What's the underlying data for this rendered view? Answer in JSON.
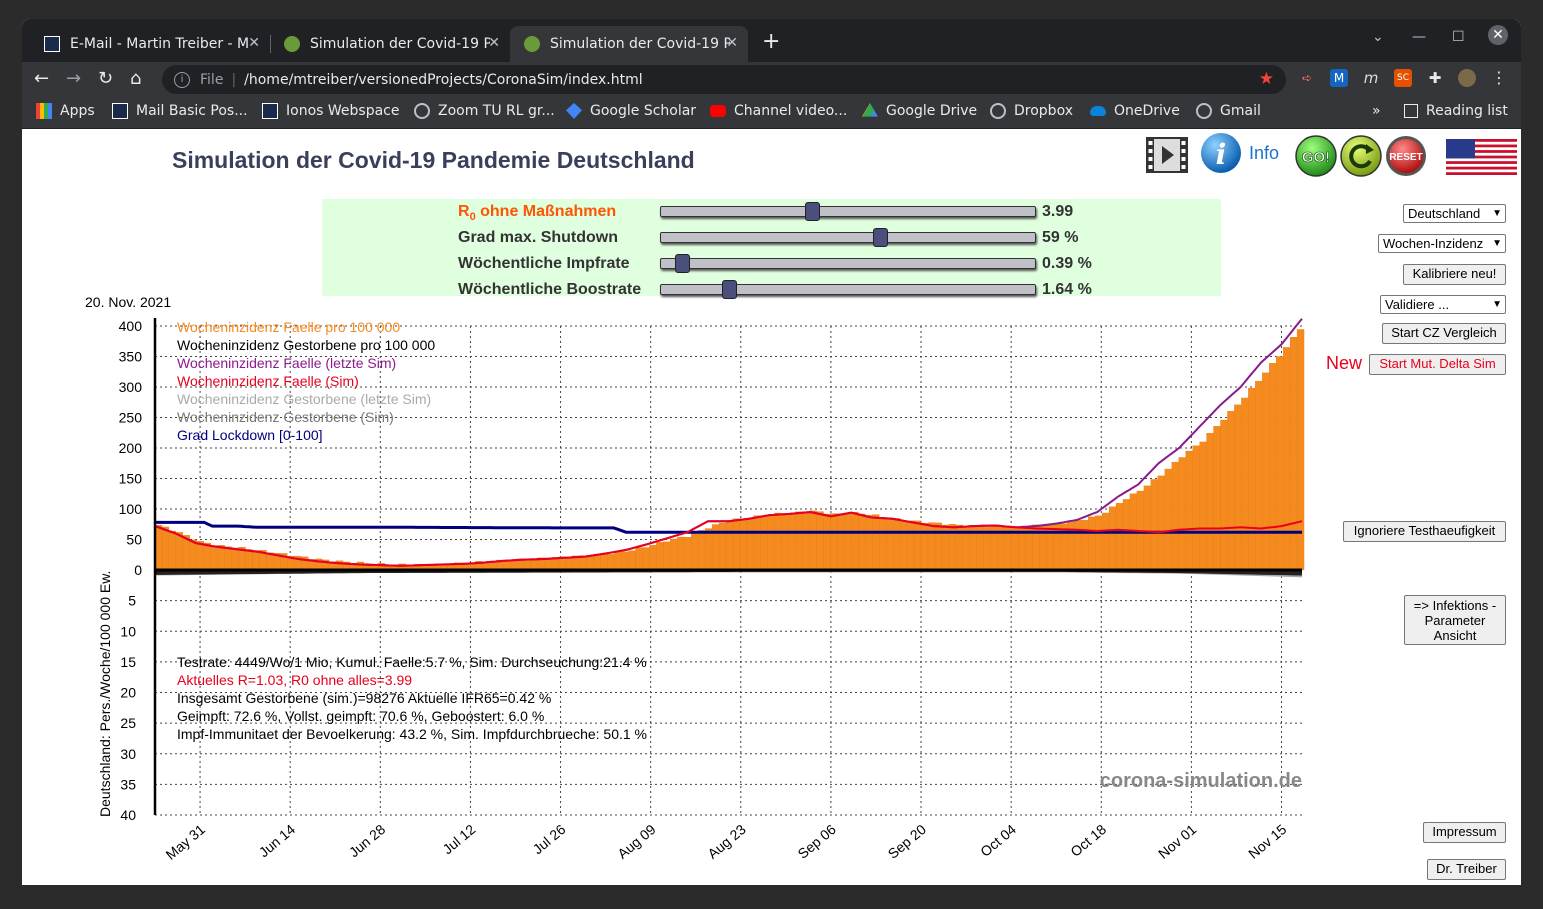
{
  "browser": {
    "tabs": [
      {
        "title": "E-Mail - Martin Treiber - M"
      },
      {
        "title": "Simulation der Covid-19 P"
      },
      {
        "title": "Simulation der Covid-19 P"
      }
    ],
    "url_scheme": "File",
    "url": "/home/mtreiber/versionedProjects/CoronaSim/index.html",
    "bookmarks": [
      "Apps",
      "Mail Basic Pos...",
      "Ionos Webspace",
      "Zoom TU RL gr...",
      "Google Scholar",
      "Channel video...",
      "Google Drive",
      "Dropbox",
      "OneDrive",
      "Gmail"
    ],
    "reading_list": "Reading list"
  },
  "page": {
    "title": "Simulation der Covid-19 Pandemie Deutschland",
    "info_label": "Info",
    "go_label": "GO!",
    "reset_label": "RESET"
  },
  "sliders": [
    {
      "label_main": "R",
      "label_sub": "0",
      "label_rest": " ohne Maßnahmen",
      "value_text": "3.99",
      "fraction": 0.4,
      "color": "#ff5500"
    },
    {
      "label": "Grad max. Shutdown",
      "value_text": "59 %",
      "fraction": 0.59,
      "color": "#333333"
    },
    {
      "label": "Wöchentliche Impfrate",
      "value_text": "0.39 %",
      "fraction": 0.04,
      "color": "#333333"
    },
    {
      "label": "Wöchentliche Boostrate",
      "value_text": "1.64 %",
      "fraction": 0.17,
      "color": "#333333"
    }
  ],
  "right_panel": {
    "country_select": "Deutschland",
    "metric_select": "Wochen-Inzidenz",
    "calibrate": "Kalibriere neu!",
    "validate_select": "Validiere ...",
    "start_cz": "Start CZ Vergleich",
    "new_label": "New",
    "start_delta": "Start Mut. Delta Sim",
    "ignore_tests": "Ignoriere Testhaeufigkeit",
    "param_view": [
      "=> Infektions -",
      "Parameter",
      "Ansicht"
    ],
    "impressum": "Impressum",
    "author": "Dr. Treiber"
  },
  "chart_data": {
    "type": "bar",
    "date_label": "20. Nov. 2021",
    "ylabel": "Deutschland: Pers./Woche/100 000 Ew.",
    "upper_ticks": [
      "400",
      "350",
      "300",
      "250",
      "200",
      "150",
      "100",
      "50",
      "0"
    ],
    "lower_ticks": [
      "5",
      "10",
      "15",
      "20",
      "25",
      "30",
      "35",
      "40"
    ],
    "x_ticks": [
      "May 31",
      "Jun 14",
      "Jun 28",
      "Jul 12",
      "Jul 26",
      "Aug 09",
      "Aug 23",
      "Sep 06",
      "Sep 20",
      "Oct 04",
      "Oct 18",
      "Nov 01",
      "Nov 15"
    ],
    "ylim_cases": [
      0,
      400
    ],
    "ylim_deaths": [
      0,
      40
    ],
    "legend": [
      {
        "text": "Wocheninzidenz Faelle pro 100 000",
        "color": "#f58a1f"
      },
      {
        "text": "Wocheninzidenz Gestorbene pro 100 000",
        "color": "#000000"
      },
      {
        "text": "Wocheninzidenz Faelle (letzte Sim)",
        "color": "#8b1a8b"
      },
      {
        "text": "Wocheninzidenz Faelle (Sim)",
        "color": "#e8001c"
      },
      {
        "text": "Wocheninzidenz Gestorbene (letzte Sim)",
        "color": "#aaaaaa"
      },
      {
        "text": "Wocheninzidenz Gestorbene (Sim)",
        "color": "#777777"
      },
      {
        "text": "Grad Lockdown [0-100]",
        "color": "#00007f"
      }
    ],
    "info_lines": [
      {
        "text": "Testrate: 4449/Wo/1 Mio, Kumul. Faelle:5.7 %, Sim. Durchseuchung:21.4 %",
        "color": "#000000"
      },
      {
        "text": "Aktuelles R=1.03,  R0 ohne alles=3.99",
        "color": "#e8001c"
      },
      {
        "text": "Insgesamt Gestorbene (sim.)=98276 Aktuelle IFR65=0.42 %",
        "color": "#000000"
      },
      {
        "text": "Geimpft: 72.6 %, Vollst. geimpft: 70.6 %, Geboostert: 6.0 %",
        "color": "#000000"
      },
      {
        "text": "Impf-Immunitaet der Bevoelkerung: 43.2 %, Sim. Impfdurchbrueche: 50.1 %",
        "color": "#000000"
      }
    ],
    "watermark": "corona-simulation.de",
    "series": [
      {
        "name": "Wocheninzidenz Faelle pro 100 000",
        "kind": "bars",
        "points": [
          [
            0,
            72
          ],
          [
            5,
            60
          ],
          [
            10,
            45
          ],
          [
            15,
            38
          ],
          [
            20,
            35
          ],
          [
            25,
            30
          ],
          [
            30,
            25
          ],
          [
            35,
            20
          ],
          [
            40,
            15
          ],
          [
            45,
            12
          ],
          [
            50,
            10
          ],
          [
            55,
            8
          ],
          [
            60,
            7
          ],
          [
            65,
            7
          ],
          [
            70,
            8
          ],
          [
            75,
            10
          ],
          [
            80,
            12
          ],
          [
            85,
            14
          ],
          [
            90,
            16
          ],
          [
            95,
            18
          ],
          [
            100,
            20
          ],
          [
            105,
            22
          ],
          [
            110,
            25
          ],
          [
            115,
            30
          ],
          [
            120,
            38
          ],
          [
            125,
            48
          ],
          [
            130,
            55
          ],
          [
            135,
            70
          ],
          [
            140,
            80
          ],
          [
            145,
            85
          ],
          [
            150,
            90
          ],
          [
            155,
            92
          ],
          [
            160,
            95
          ],
          [
            165,
            90
          ],
          [
            170,
            92
          ],
          [
            175,
            88
          ],
          [
            180,
            82
          ],
          [
            185,
            78
          ],
          [
            190,
            75
          ],
          [
            195,
            72
          ],
          [
            200,
            70
          ],
          [
            205,
            70
          ],
          [
            210,
            68
          ],
          [
            215,
            72
          ],
          [
            220,
            75
          ],
          [
            225,
            80
          ],
          [
            230,
            88
          ],
          [
            235,
            110
          ],
          [
            240,
            130
          ],
          [
            245,
            155
          ],
          [
            250,
            185
          ],
          [
            255,
            210
          ],
          [
            260,
            245
          ],
          [
            265,
            280
          ],
          [
            270,
            320
          ],
          [
            275,
            360
          ],
          [
            280,
            405
          ]
        ]
      },
      {
        "name": "Wocheninzidenz Faelle (letzte Sim)",
        "kind": "line",
        "points": [
          [
            0,
            72
          ],
          [
            5,
            60
          ],
          [
            10,
            44
          ],
          [
            15,
            38
          ],
          [
            20,
            34
          ],
          [
            25,
            30
          ],
          [
            30,
            24
          ],
          [
            35,
            18
          ],
          [
            40,
            14
          ],
          [
            45,
            11
          ],
          [
            50,
            9
          ],
          [
            55,
            8
          ],
          [
            60,
            7
          ],
          [
            65,
            8
          ],
          [
            70,
            9
          ],
          [
            75,
            10
          ],
          [
            80,
            12
          ],
          [
            85,
            15
          ],
          [
            90,
            17
          ],
          [
            95,
            18
          ],
          [
            100,
            20
          ],
          [
            105,
            22
          ],
          [
            110,
            27
          ],
          [
            115,
            33
          ],
          [
            120,
            42
          ],
          [
            125,
            52
          ],
          [
            130,
            62
          ],
          [
            135,
            80
          ],
          [
            140,
            80
          ],
          [
            145,
            84
          ],
          [
            150,
            90
          ],
          [
            155,
            92
          ],
          [
            160,
            95
          ],
          [
            165,
            88
          ],
          [
            170,
            94
          ],
          [
            175,
            86
          ],
          [
            180,
            84
          ],
          [
            185,
            78
          ],
          [
            190,
            72
          ],
          [
            195,
            70
          ],
          [
            200,
            72
          ],
          [
            205,
            73
          ],
          [
            210,
            70
          ],
          [
            215,
            72
          ],
          [
            220,
            76
          ],
          [
            225,
            82
          ],
          [
            230,
            95
          ],
          [
            235,
            120
          ],
          [
            240,
            140
          ],
          [
            245,
            175
          ],
          [
            250,
            200
          ],
          [
            255,
            235
          ],
          [
            260,
            270
          ],
          [
            265,
            300
          ],
          [
            270,
            340
          ],
          [
            275,
            370
          ],
          [
            280,
            412
          ]
        ]
      },
      {
        "name": "Wocheninzidenz Faelle (Sim)",
        "kind": "line",
        "points": [
          [
            0,
            72
          ],
          [
            5,
            60
          ],
          [
            10,
            44
          ],
          [
            15,
            38
          ],
          [
            20,
            34
          ],
          [
            25,
            30
          ],
          [
            30,
            24
          ],
          [
            35,
            18
          ],
          [
            40,
            14
          ],
          [
            45,
            11
          ],
          [
            50,
            9
          ],
          [
            55,
            8
          ],
          [
            60,
            7
          ],
          [
            65,
            8
          ],
          [
            70,
            9
          ],
          [
            75,
            10
          ],
          [
            80,
            12
          ],
          [
            85,
            15
          ],
          [
            90,
            17
          ],
          [
            95,
            18
          ],
          [
            100,
            20
          ],
          [
            105,
            22
          ],
          [
            110,
            27
          ],
          [
            115,
            33
          ],
          [
            120,
            42
          ],
          [
            125,
            52
          ],
          [
            130,
            62
          ],
          [
            135,
            80
          ],
          [
            140,
            80
          ],
          [
            145,
            84
          ],
          [
            150,
            90
          ],
          [
            155,
            92
          ],
          [
            160,
            95
          ],
          [
            165,
            88
          ],
          [
            170,
            94
          ],
          [
            175,
            86
          ],
          [
            180,
            84
          ],
          [
            185,
            78
          ],
          [
            190,
            72
          ],
          [
            195,
            70
          ],
          [
            200,
            72
          ],
          [
            205,
            73
          ],
          [
            210,
            70
          ],
          [
            215,
            68
          ],
          [
            220,
            67
          ],
          [
            225,
            66
          ],
          [
            230,
            64
          ],
          [
            235,
            66
          ],
          [
            240,
            64
          ],
          [
            245,
            62
          ],
          [
            250,
            66
          ],
          [
            255,
            68
          ],
          [
            260,
            68
          ],
          [
            265,
            70
          ],
          [
            270,
            68
          ],
          [
            275,
            72
          ],
          [
            280,
            80
          ]
        ]
      },
      {
        "name": "Grad Lockdown [0-100]",
        "kind": "line",
        "points": [
          [
            0,
            78
          ],
          [
            12,
            78
          ],
          [
            14,
            72
          ],
          [
            20,
            72
          ],
          [
            25,
            70
          ],
          [
            35,
            70
          ],
          [
            60,
            70
          ],
          [
            100,
            69
          ],
          [
            112,
            69
          ],
          [
            115,
            62
          ],
          [
            280,
            62
          ]
        ]
      },
      {
        "name": "Wocheninzidenz Gestorbene pro 100 000",
        "kind": "deaths",
        "points": [
          [
            0,
            0.8
          ],
          [
            50,
            0.5
          ],
          [
            150,
            0.3
          ],
          [
            220,
            0.3
          ],
          [
            250,
            0.5
          ],
          [
            280,
            0.9
          ]
        ]
      },
      {
        "name": "Wocheninzidenz Gestorbene (letzte Sim)",
        "kind": "deaths_sim",
        "points": [
          [
            0,
            0.9
          ],
          [
            50,
            0.5
          ],
          [
            150,
            0.4
          ],
          [
            220,
            0.4
          ],
          [
            250,
            0.6
          ],
          [
            280,
            1.2
          ]
        ]
      }
    ]
  }
}
